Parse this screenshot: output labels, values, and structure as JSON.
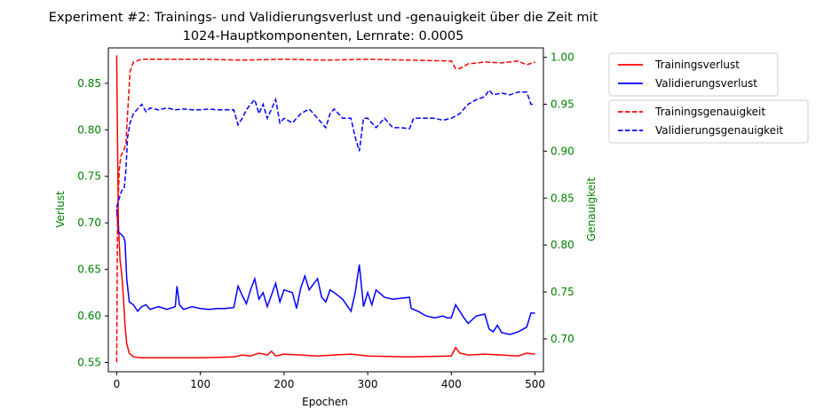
{
  "chart_data": {
    "type": "line",
    "title_line1": "Experiment #2: Trainings- und Validierungsverlust und -genauigkeit über die Zeit mit",
    "title_line2": "1024-Hauptkomponenten, Lernrate: 0.0005",
    "xlabel": "Epochen",
    "ylabel_left": "Verlust",
    "ylabel_right": "Genauigkeit",
    "xlim": [
      -10,
      510
    ],
    "ylim_left": [
      0.54,
      0.888
    ],
    "ylim_right": [
      0.665,
      1.01
    ],
    "x_ticks": [
      0,
      100,
      200,
      300,
      400,
      500
    ],
    "y_ticks_left": [
      "0.55",
      "0.60",
      "0.65",
      "0.70",
      "0.75",
      "0.80",
      "0.85"
    ],
    "y_ticks_right": [
      "0.70",
      "0.75",
      "0.80",
      "0.85",
      "0.90",
      "0.95",
      "1.00"
    ],
    "grid": false,
    "legend_loss": [
      {
        "name": "Trainingsverlust",
        "color": "#ff0000",
        "dash": "solid"
      },
      {
        "name": "Validierungsverlust",
        "color": "#0000ff",
        "dash": "solid"
      }
    ],
    "legend_acc": [
      {
        "name": "Trainingsgenauigkeit",
        "color": "#ff0000",
        "dash": "dashed"
      },
      {
        "name": "Validierungsgenauigkeit",
        "color": "#0000ff",
        "dash": "dashed"
      }
    ],
    "series": [
      {
        "name": "Trainingsverlust",
        "axis": "left",
        "color": "#ff0000",
        "dash": "solid",
        "points": [
          [
            0,
            0.88
          ],
          [
            2,
            0.7
          ],
          [
            4,
            0.66
          ],
          [
            6,
            0.645
          ],
          [
            8,
            0.62
          ],
          [
            10,
            0.59
          ],
          [
            12,
            0.57
          ],
          [
            15,
            0.56
          ],
          [
            20,
            0.556
          ],
          [
            30,
            0.555
          ],
          [
            60,
            0.555
          ],
          [
            100,
            0.555
          ],
          [
            140,
            0.556
          ],
          [
            150,
            0.558
          ],
          [
            160,
            0.557
          ],
          [
            170,
            0.56
          ],
          [
            180,
            0.558
          ],
          [
            185,
            0.562
          ],
          [
            190,
            0.557
          ],
          [
            200,
            0.559
          ],
          [
            220,
            0.558
          ],
          [
            240,
            0.557
          ],
          [
            260,
            0.558
          ],
          [
            280,
            0.559
          ],
          [
            300,
            0.557
          ],
          [
            350,
            0.556
          ],
          [
            400,
            0.557
          ],
          [
            405,
            0.566
          ],
          [
            410,
            0.56
          ],
          [
            420,
            0.558
          ],
          [
            440,
            0.559
          ],
          [
            460,
            0.558
          ],
          [
            480,
            0.557
          ],
          [
            490,
            0.56
          ],
          [
            500,
            0.559
          ]
        ]
      },
      {
        "name": "Validierungsverlust",
        "axis": "left",
        "color": "#0000ff",
        "dash": "solid",
        "points": [
          [
            0,
            0.715
          ],
          [
            2,
            0.69
          ],
          [
            5,
            0.688
          ],
          [
            8,
            0.685
          ],
          [
            10,
            0.68
          ],
          [
            12,
            0.64
          ],
          [
            15,
            0.615
          ],
          [
            20,
            0.612
          ],
          [
            25,
            0.605
          ],
          [
            30,
            0.61
          ],
          [
            35,
            0.612
          ],
          [
            40,
            0.607
          ],
          [
            50,
            0.61
          ],
          [
            60,
            0.607
          ],
          [
            70,
            0.61
          ],
          [
            72,
            0.632
          ],
          [
            75,
            0.612
          ],
          [
            80,
            0.607
          ],
          [
            90,
            0.61
          ],
          [
            100,
            0.608
          ],
          [
            110,
            0.607
          ],
          [
            120,
            0.608
          ],
          [
            130,
            0.608
          ],
          [
            140,
            0.609
          ],
          [
            145,
            0.632
          ],
          [
            150,
            0.622
          ],
          [
            155,
            0.613
          ],
          [
            160,
            0.628
          ],
          [
            165,
            0.64
          ],
          [
            170,
            0.618
          ],
          [
            175,
            0.625
          ],
          [
            180,
            0.61
          ],
          [
            190,
            0.635
          ],
          [
            195,
            0.615
          ],
          [
            200,
            0.628
          ],
          [
            210,
            0.625
          ],
          [
            215,
            0.608
          ],
          [
            220,
            0.63
          ],
          [
            225,
            0.643
          ],
          [
            230,
            0.628
          ],
          [
            240,
            0.64
          ],
          [
            245,
            0.62
          ],
          [
            250,
            0.615
          ],
          [
            255,
            0.628
          ],
          [
            260,
            0.625
          ],
          [
            270,
            0.618
          ],
          [
            280,
            0.605
          ],
          [
            285,
            0.625
          ],
          [
            290,
            0.655
          ],
          [
            295,
            0.61
          ],
          [
            300,
            0.625
          ],
          [
            305,
            0.612
          ],
          [
            310,
            0.628
          ],
          [
            320,
            0.62
          ],
          [
            330,
            0.618
          ],
          [
            340,
            0.619
          ],
          [
            350,
            0.62
          ],
          [
            352,
            0.608
          ],
          [
            360,
            0.605
          ],
          [
            370,
            0.6
          ],
          [
            380,
            0.598
          ],
          [
            390,
            0.6
          ],
          [
            395,
            0.598
          ],
          [
            400,
            0.598
          ],
          [
            405,
            0.612
          ],
          [
            410,
            0.605
          ],
          [
            415,
            0.598
          ],
          [
            420,
            0.592
          ],
          [
            430,
            0.6
          ],
          [
            440,
            0.602
          ],
          [
            445,
            0.586
          ],
          [
            450,
            0.583
          ],
          [
            455,
            0.59
          ],
          [
            460,
            0.582
          ],
          [
            470,
            0.58
          ],
          [
            480,
            0.583
          ],
          [
            490,
            0.588
          ],
          [
            495,
            0.603
          ],
          [
            500,
            0.603
          ]
        ]
      },
      {
        "name": "Trainingsgenauigkeit",
        "axis": "right",
        "color": "#ff0000",
        "dash": "dashed",
        "points": [
          [
            0,
            0.675
          ],
          [
            1,
            0.83
          ],
          [
            3,
            0.88
          ],
          [
            5,
            0.895
          ],
          [
            8,
            0.9
          ],
          [
            11,
            0.908
          ],
          [
            13,
            0.94
          ],
          [
            16,
            0.985
          ],
          [
            20,
            0.995
          ],
          [
            30,
            0.998
          ],
          [
            60,
            0.998
          ],
          [
            100,
            0.998
          ],
          [
            150,
            0.997
          ],
          [
            200,
            0.998
          ],
          [
            250,
            0.997
          ],
          [
            300,
            0.998
          ],
          [
            350,
            0.997
          ],
          [
            400,
            0.996
          ],
          [
            405,
            0.988
          ],
          [
            410,
            0.988
          ],
          [
            420,
            0.993
          ],
          [
            440,
            0.995
          ],
          [
            460,
            0.994
          ],
          [
            480,
            0.996
          ],
          [
            490,
            0.992
          ],
          [
            500,
            0.995
          ]
        ]
      },
      {
        "name": "Validierungsgenauigkeit",
        "axis": "right",
        "color": "#0000ff",
        "dash": "dashed",
        "points": [
          [
            0,
            0.84
          ],
          [
            3,
            0.85
          ],
          [
            6,
            0.858
          ],
          [
            9,
            0.86
          ],
          [
            11,
            0.88
          ],
          [
            13,
            0.915
          ],
          [
            16,
            0.93
          ],
          [
            20,
            0.94
          ],
          [
            25,
            0.945
          ],
          [
            30,
            0.95
          ],
          [
            35,
            0.942
          ],
          [
            40,
            0.946
          ],
          [
            45,
            0.945
          ],
          [
            50,
            0.944
          ],
          [
            60,
            0.946
          ],
          [
            70,
            0.944
          ],
          [
            80,
            0.945
          ],
          [
            90,
            0.944
          ],
          [
            100,
            0.944
          ],
          [
            110,
            0.945
          ],
          [
            120,
            0.944
          ],
          [
            130,
            0.944
          ],
          [
            140,
            0.944
          ],
          [
            145,
            0.928
          ],
          [
            150,
            0.935
          ],
          [
            155,
            0.944
          ],
          [
            160,
            0.95
          ],
          [
            165,
            0.955
          ],
          [
            170,
            0.94
          ],
          [
            175,
            0.95
          ],
          [
            180,
            0.935
          ],
          [
            185,
            0.945
          ],
          [
            190,
            0.955
          ],
          [
            195,
            0.93
          ],
          [
            200,
            0.935
          ],
          [
            210,
            0.93
          ],
          [
            220,
            0.94
          ],
          [
            230,
            0.945
          ],
          [
            240,
            0.935
          ],
          [
            250,
            0.925
          ],
          [
            255,
            0.94
          ],
          [
            260,
            0.945
          ],
          [
            270,
            0.935
          ],
          [
            280,
            0.935
          ],
          [
            285,
            0.915
          ],
          [
            290,
            0.9
          ],
          [
            295,
            0.935
          ],
          [
            300,
            0.935
          ],
          [
            310,
            0.925
          ],
          [
            320,
            0.935
          ],
          [
            330,
            0.925
          ],
          [
            340,
            0.925
          ],
          [
            350,
            0.924
          ],
          [
            355,
            0.935
          ],
          [
            360,
            0.935
          ],
          [
            370,
            0.935
          ],
          [
            380,
            0.935
          ],
          [
            390,
            0.933
          ],
          [
            400,
            0.935
          ],
          [
            410,
            0.94
          ],
          [
            420,
            0.95
          ],
          [
            430,
            0.955
          ],
          [
            440,
            0.958
          ],
          [
            445,
            0.965
          ],
          [
            450,
            0.96
          ],
          [
            460,
            0.962
          ],
          [
            470,
            0.96
          ],
          [
            480,
            0.963
          ],
          [
            490,
            0.963
          ],
          [
            495,
            0.95
          ],
          [
            500,
            0.95
          ]
        ]
      }
    ]
  }
}
